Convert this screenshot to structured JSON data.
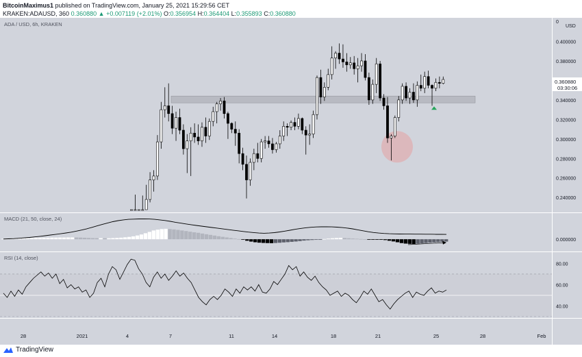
{
  "header": {
    "user": "BitcoinMaximus1",
    "published": "published on TradingView.com, January 25, 2021 15:29:56 CET",
    "ticker": "KRAKEN:ADAUSD, 360",
    "last": "0.360880",
    "change": "+0.007119 (+2.01%)",
    "o_label": "O:",
    "o": "0.356954",
    "h_label": "H:",
    "h": "0.364404",
    "l_label": "L:",
    "l": "0.355893",
    "c_label": "C:",
    "c": "0.360880"
  },
  "main_pane": {
    "title": "ADA / USD, 6h, KRAKEN",
    "currency": "USD",
    "price_label": "0.360880",
    "countdown": "03:30:06"
  },
  "macd_pane": {
    "title": "MACD (21, 50, close, 24)",
    "zero_label": "0.000000"
  },
  "rsi_pane": {
    "title": "RSI (14, close)"
  },
  "footer": {
    "brand": "TradingView"
  },
  "colors": {
    "pane_bg": "#d1d4dc",
    "up_candle": "#ffffff",
    "down_candle": "#000000",
    "support_zone": "#a7a9b0",
    "circle_highlight": "#e6a1a3",
    "up_arrow": "#26a65b",
    "price_tag": "#ffffff"
  },
  "chart_data": [
    {
      "type": "candlestick",
      "title": "ADA / USD, 6h, KRAKEN",
      "x_tick_labels": [
        "28",
        "2021",
        "4",
        "7",
        "11",
        "14",
        "18",
        "21",
        "25",
        "28",
        "Feb"
      ],
      "y_tick_labels": [
        "0.240000",
        "0.260000",
        "0.280000",
        "0.300000",
        "0.320000",
        "0.340000",
        "0.360000",
        "0.380000",
        "0.400000",
        "0"
      ],
      "ylim": [
        0.2275,
        0.42
      ],
      "grid": false,
      "annotations": {
        "support_zone": [
          0.337,
          0.344
        ],
        "highlight_circle_price": 0.292,
        "up_arrow_price": 0.332,
        "last_price": 0.36088
      },
      "candles": [
        {
          "o": 0.2275,
          "h": 0.2275,
          "l": 0.2275,
          "c": 0.2275
        },
        {
          "o": 0.2275,
          "h": 0.243,
          "l": 0.2275,
          "c": 0.2275
        },
        {
          "o": 0.2275,
          "h": 0.2275,
          "l": 0.2275,
          "c": 0.2275
        },
        {
          "o": 0.2275,
          "h": 0.242,
          "l": 0.2275,
          "c": 0.2275
        },
        {
          "o": 0.2275,
          "h": 0.253,
          "l": 0.2275,
          "c": 0.238
        },
        {
          "o": 0.238,
          "h": 0.266,
          "l": 0.235,
          "c": 0.258
        },
        {
          "o": 0.258,
          "h": 0.268,
          "l": 0.246,
          "c": 0.262
        },
        {
          "o": 0.262,
          "h": 0.304,
          "l": 0.258,
          "c": 0.297
        },
        {
          "o": 0.297,
          "h": 0.338,
          "l": 0.29,
          "c": 0.33
        },
        {
          "o": 0.33,
          "h": 0.353,
          "l": 0.322,
          "c": 0.334
        },
        {
          "o": 0.334,
          "h": 0.357,
          "l": 0.318,
          "c": 0.326
        },
        {
          "o": 0.326,
          "h": 0.334,
          "l": 0.305,
          "c": 0.311
        },
        {
          "o": 0.311,
          "h": 0.328,
          "l": 0.298,
          "c": 0.322
        },
        {
          "o": 0.322,
          "h": 0.331,
          "l": 0.305,
          "c": 0.309
        },
        {
          "o": 0.309,
          "h": 0.315,
          "l": 0.284,
          "c": 0.29
        },
        {
          "o": 0.29,
          "h": 0.305,
          "l": 0.265,
          "c": 0.298
        },
        {
          "o": 0.298,
          "h": 0.312,
          "l": 0.262,
          "c": 0.306
        },
        {
          "o": 0.306,
          "h": 0.316,
          "l": 0.296,
          "c": 0.302
        },
        {
          "o": 0.302,
          "h": 0.315,
          "l": 0.294,
          "c": 0.298
        },
        {
          "o": 0.298,
          "h": 0.317,
          "l": 0.292,
          "c": 0.312
        },
        {
          "o": 0.312,
          "h": 0.322,
          "l": 0.296,
          "c": 0.303
        },
        {
          "o": 0.303,
          "h": 0.321,
          "l": 0.299,
          "c": 0.318
        },
        {
          "o": 0.318,
          "h": 0.333,
          "l": 0.313,
          "c": 0.328
        },
        {
          "o": 0.328,
          "h": 0.338,
          "l": 0.316,
          "c": 0.336
        },
        {
          "o": 0.336,
          "h": 0.342,
          "l": 0.329,
          "c": 0.339
        },
        {
          "o": 0.339,
          "h": 0.343,
          "l": 0.321,
          "c": 0.326
        },
        {
          "o": 0.326,
          "h": 0.328,
          "l": 0.3,
          "c": 0.316
        },
        {
          "o": 0.316,
          "h": 0.317,
          "l": 0.306,
          "c": 0.31
        },
        {
          "o": 0.31,
          "h": 0.318,
          "l": 0.293,
          "c": 0.306
        },
        {
          "o": 0.306,
          "h": 0.31,
          "l": 0.275,
          "c": 0.285
        },
        {
          "o": 0.285,
          "h": 0.291,
          "l": 0.268,
          "c": 0.274
        },
        {
          "o": 0.274,
          "h": 0.283,
          "l": 0.239,
          "c": 0.258
        },
        {
          "o": 0.258,
          "h": 0.28,
          "l": 0.252,
          "c": 0.276
        },
        {
          "o": 0.276,
          "h": 0.29,
          "l": 0.268,
          "c": 0.285
        },
        {
          "o": 0.285,
          "h": 0.296,
          "l": 0.276,
          "c": 0.28
        },
        {
          "o": 0.28,
          "h": 0.3,
          "l": 0.276,
          "c": 0.297
        },
        {
          "o": 0.297,
          "h": 0.303,
          "l": 0.29,
          "c": 0.298
        },
        {
          "o": 0.298,
          "h": 0.303,
          "l": 0.291,
          "c": 0.295
        },
        {
          "o": 0.295,
          "h": 0.301,
          "l": 0.285,
          "c": 0.289
        },
        {
          "o": 0.289,
          "h": 0.297,
          "l": 0.286,
          "c": 0.295
        },
        {
          "o": 0.295,
          "h": 0.309,
          "l": 0.29,
          "c": 0.303
        },
        {
          "o": 0.303,
          "h": 0.318,
          "l": 0.298,
          "c": 0.313
        },
        {
          "o": 0.313,
          "h": 0.316,
          "l": 0.303,
          "c": 0.312
        },
        {
          "o": 0.312,
          "h": 0.319,
          "l": 0.309,
          "c": 0.317
        },
        {
          "o": 0.317,
          "h": 0.322,
          "l": 0.309,
          "c": 0.313
        },
        {
          "o": 0.313,
          "h": 0.326,
          "l": 0.31,
          "c": 0.321
        },
        {
          "o": 0.321,
          "h": 0.322,
          "l": 0.305,
          "c": 0.309
        },
        {
          "o": 0.309,
          "h": 0.313,
          "l": 0.284,
          "c": 0.304
        },
        {
          "o": 0.304,
          "h": 0.315,
          "l": 0.294,
          "c": 0.305
        },
        {
          "o": 0.305,
          "h": 0.329,
          "l": 0.301,
          "c": 0.325
        },
        {
          "o": 0.325,
          "h": 0.365,
          "l": 0.32,
          "c": 0.363
        },
        {
          "o": 0.363,
          "h": 0.371,
          "l": 0.336,
          "c": 0.343
        },
        {
          "o": 0.343,
          "h": 0.358,
          "l": 0.339,
          "c": 0.353
        },
        {
          "o": 0.353,
          "h": 0.372,
          "l": 0.35,
          "c": 0.366
        },
        {
          "o": 0.366,
          "h": 0.395,
          "l": 0.361,
          "c": 0.383
        },
        {
          "o": 0.383,
          "h": 0.39,
          "l": 0.372,
          "c": 0.388
        },
        {
          "o": 0.388,
          "h": 0.398,
          "l": 0.377,
          "c": 0.382
        },
        {
          "o": 0.382,
          "h": 0.397,
          "l": 0.373,
          "c": 0.379
        },
        {
          "o": 0.379,
          "h": 0.388,
          "l": 0.369,
          "c": 0.376
        },
        {
          "o": 0.376,
          "h": 0.384,
          "l": 0.372,
          "c": 0.378
        },
        {
          "o": 0.378,
          "h": 0.385,
          "l": 0.366,
          "c": 0.372
        },
        {
          "o": 0.372,
          "h": 0.383,
          "l": 0.358,
          "c": 0.375
        },
        {
          "o": 0.375,
          "h": 0.388,
          "l": 0.369,
          "c": 0.38
        },
        {
          "o": 0.38,
          "h": 0.387,
          "l": 0.36,
          "c": 0.363
        },
        {
          "o": 0.363,
          "h": 0.368,
          "l": 0.335,
          "c": 0.34
        },
        {
          "o": 0.34,
          "h": 0.361,
          "l": 0.336,
          "c": 0.356
        },
        {
          "o": 0.356,
          "h": 0.383,
          "l": 0.347,
          "c": 0.377
        },
        {
          "o": 0.377,
          "h": 0.38,
          "l": 0.339,
          "c": 0.342
        },
        {
          "o": 0.342,
          "h": 0.346,
          "l": 0.33,
          "c": 0.334
        },
        {
          "o": 0.334,
          "h": 0.343,
          "l": 0.296,
          "c": 0.301
        },
        {
          "o": 0.301,
          "h": 0.305,
          "l": 0.278,
          "c": 0.303
        },
        {
          "o": 0.303,
          "h": 0.324,
          "l": 0.301,
          "c": 0.322
        },
        {
          "o": 0.322,
          "h": 0.344,
          "l": 0.318,
          "c": 0.34
        },
        {
          "o": 0.34,
          "h": 0.357,
          "l": 0.336,
          "c": 0.354
        },
        {
          "o": 0.354,
          "h": 0.358,
          "l": 0.339,
          "c": 0.342
        },
        {
          "o": 0.342,
          "h": 0.352,
          "l": 0.336,
          "c": 0.348
        },
        {
          "o": 0.348,
          "h": 0.357,
          "l": 0.337,
          "c": 0.34
        },
        {
          "o": 0.34,
          "h": 0.359,
          "l": 0.333,
          "c": 0.355
        },
        {
          "o": 0.355,
          "h": 0.366,
          "l": 0.349,
          "c": 0.352
        },
        {
          "o": 0.352,
          "h": 0.369,
          "l": 0.347,
          "c": 0.364
        },
        {
          "o": 0.364,
          "h": 0.37,
          "l": 0.352,
          "c": 0.355
        },
        {
          "o": 0.355,
          "h": 0.356,
          "l": 0.334,
          "c": 0.352
        },
        {
          "o": 0.352,
          "h": 0.362,
          "l": 0.349,
          "c": 0.358
        },
        {
          "o": 0.358,
          "h": 0.364,
          "l": 0.352,
          "c": 0.357
        },
        {
          "o": 0.357,
          "h": 0.364,
          "l": 0.356,
          "c": 0.361
        }
      ]
    },
    {
      "type": "bar",
      "title": "MACD (21, 50, close, 24)",
      "y_tick_labels": [
        "0.000000"
      ],
      "ylim": [
        -0.013,
        0.028
      ],
      "histogram": [
        0.0005,
        0.0005,
        0.0006,
        0.0008,
        0.0009,
        0.001,
        0.0012,
        0.0015,
        0.0018,
        0.0018,
        0.0018,
        0.0019,
        0.002,
        0.002,
        0.0021,
        0.0021,
        0.0022,
        0.0022,
        0.0021,
        0.002,
        0.0018,
        0.0016,
        0.0014,
        0.0013,
        0.0013,
        0.0012,
        0.0012,
        0.0014,
        0.0016,
        0.0019,
        0.0023,
        0.0028,
        0.0035,
        0.0045,
        0.0057,
        0.0072,
        0.0088,
        0.0105,
        0.0115,
        0.0122,
        0.0125,
        0.0122,
        0.0118,
        0.0112,
        0.0105,
        0.0098,
        0.009,
        0.0083,
        0.0077,
        0.0068,
        0.006,
        0.0052,
        0.0044,
        0.0036,
        0.0029,
        0.0022,
        0.0015,
        0.0008,
        0.0002,
        -0.0006,
        -0.0018,
        -0.0028,
        -0.0036,
        -0.0041,
        -0.0044,
        -0.0046,
        -0.0047,
        -0.0045,
        -0.0042,
        -0.0038,
        -0.0035,
        -0.0031,
        -0.0027,
        -0.0022,
        -0.0016,
        -0.0012,
        -0.0009,
        -0.0005,
        -0.0002,
        0.0003,
        0.0008,
        0.0012,
        0.0015,
        0.0017,
        0.0015,
        0.0012,
        0.0009,
        0.0006,
        0.0003,
        0.0001,
        -0.0001,
        -0.0003,
        -0.0005,
        -0.0007,
        -0.001,
        -0.0018,
        -0.0026,
        -0.0036,
        -0.0046,
        -0.0052,
        -0.0055,
        -0.0056,
        -0.0053,
        -0.0049,
        -0.0045,
        -0.0041,
        -0.0037,
        -0.0033,
        -0.0031,
        -0.0028
      ],
      "macd_line": [
        0.0003,
        0.0005,
        0.0008,
        0.0012,
        0.0017,
        0.0022,
        0.0028,
        0.0035,
        0.0042,
        0.005,
        0.0058,
        0.0066,
        0.0075,
        0.0085,
        0.0097,
        0.011,
        0.0125,
        0.0142,
        0.016,
        0.0178,
        0.0195,
        0.021,
        0.0223,
        0.0232,
        0.0238,
        0.0241,
        0.0243,
        0.0243,
        0.0242,
        0.0238,
        0.0232,
        0.0224,
        0.0214,
        0.0203,
        0.0193,
        0.0183,
        0.0174,
        0.0165,
        0.0157,
        0.0149,
        0.0141,
        0.0133,
        0.0125,
        0.0117,
        0.0109,
        0.0101,
        0.0093,
        0.0086,
        0.008,
        0.0074,
        0.0072,
        0.0074,
        0.0079,
        0.0087,
        0.0097,
        0.0108,
        0.0119,
        0.0129,
        0.0137,
        0.0143,
        0.0147,
        0.0149,
        0.0149,
        0.0148,
        0.0145,
        0.014,
        0.0133,
        0.0124,
        0.0113,
        0.0101,
        0.009,
        0.0081,
        0.0074,
        0.0069,
        0.0066,
        0.0064,
        0.0063,
        0.0062,
        0.0062,
        0.0061,
        0.0061,
        0.006,
        0.006,
        0.0059,
        0.0059,
        0.0058
      ],
      "zero_line": 0
    },
    {
      "type": "line",
      "title": "RSI (14, close)",
      "y_tick_labels": [
        "40.00",
        "60.00",
        "80.00"
      ],
      "ylim": [
        30,
        88
      ],
      "bands": [
        30,
        50,
        70
      ],
      "values": [
        52,
        48,
        54,
        49,
        55,
        51,
        58,
        62,
        66,
        69,
        72,
        68,
        71,
        66,
        70,
        61,
        65,
        57,
        60,
        56,
        58,
        53,
        55,
        48,
        52,
        62,
        66,
        58,
        70,
        77,
        74,
        65,
        72,
        79,
        84,
        83,
        75,
        70,
        62,
        58,
        67,
        72,
        66,
        70,
        64,
        68,
        73,
        68,
        71,
        66,
        62,
        55,
        48,
        44,
        41,
        46,
        49,
        46,
        50,
        56,
        53,
        49,
        56,
        52,
        58,
        55,
        58,
        54,
        60,
        53,
        52,
        56,
        63,
        60,
        65,
        70,
        78,
        74,
        77,
        68,
        72,
        67,
        64,
        68,
        62,
        58,
        55,
        50,
        52,
        54,
        49,
        52,
        50,
        46,
        43,
        48,
        54,
        51,
        56,
        50,
        44,
        46,
        41,
        37,
        42,
        46,
        49,
        52,
        54,
        48,
        53,
        51,
        50,
        54,
        57,
        52,
        54,
        53,
        55
      ],
      "ref_lines": [
        40,
        60,
        80
      ]
    }
  ]
}
